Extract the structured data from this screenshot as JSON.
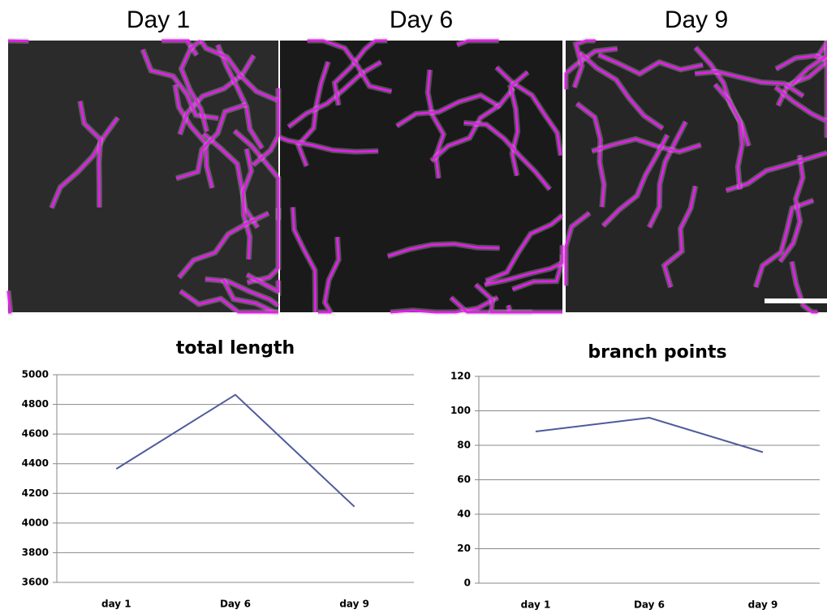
{
  "panels": [
    {
      "label": "Day 1"
    },
    {
      "label": "Day 6"
    },
    {
      "label": "Day 9"
    }
  ],
  "chart_data": [
    {
      "type": "line",
      "title": "total length",
      "categories": [
        "day 1",
        "Day 6",
        "day 9"
      ],
      "values": [
        4365,
        4865,
        4110
      ],
      "color": "#4f5a9c",
      "ylim": [
        3600,
        5000
      ],
      "yticks": [
        3600,
        3800,
        4000,
        4200,
        4400,
        4600,
        4800,
        5000
      ],
      "grid": true
    },
    {
      "type": "line",
      "title": "branch points",
      "categories": [
        "day 1",
        "Day 6",
        "day 9"
      ],
      "values": [
        88,
        96,
        76
      ],
      "color": "#4f5a9c",
      "ylim": [
        0,
        120
      ],
      "yticks": [
        0,
        20,
        40,
        60,
        80,
        100,
        120
      ],
      "grid": true
    }
  ]
}
